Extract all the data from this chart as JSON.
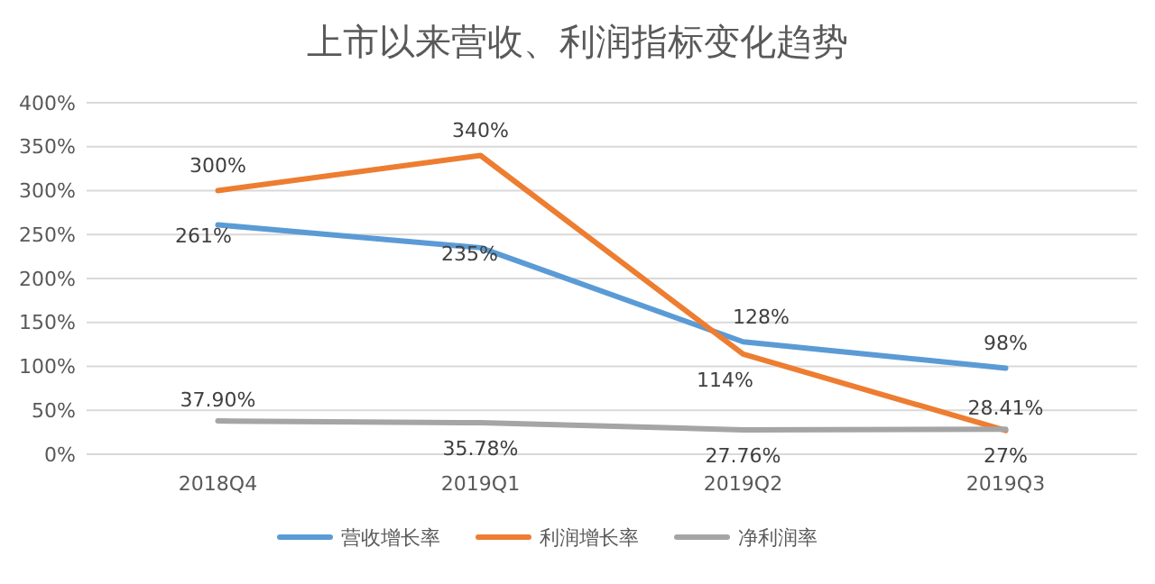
{
  "chart_data": {
    "type": "line",
    "title": "上市以来营收、利润指标变化趋势",
    "categories": [
      "2018Q4",
      "2019Q1",
      "2019Q2",
      "2019Q3"
    ],
    "series": [
      {
        "name": "营收增长率",
        "color": "#5b9bd5",
        "values": [
          261,
          235,
          128,
          98
        ],
        "value_labels": [
          "261%",
          "235%",
          "128%",
          "98%"
        ]
      },
      {
        "name": "利润增长率",
        "color": "#ed7d31",
        "values": [
          300,
          340,
          114,
          27
        ],
        "value_labels": [
          "300%",
          "340%",
          "114%",
          "27%"
        ]
      },
      {
        "name": "净利润率",
        "color": "#a5a5a5",
        "values": [
          37.9,
          35.78,
          27.76,
          28.41
        ],
        "value_labels": [
          "37.90%",
          "35.78%",
          "27.76%",
          "28.41%"
        ]
      }
    ],
    "ylim": [
      0,
      400
    ],
    "yticks": [
      {
        "value": 0,
        "label": "0%"
      },
      {
        "value": 50,
        "label": "50%"
      },
      {
        "value": 100,
        "label": "100%"
      },
      {
        "value": 150,
        "label": "150%"
      },
      {
        "value": 200,
        "label": "200%"
      },
      {
        "value": 250,
        "label": "250%"
      },
      {
        "value": 300,
        "label": "300%"
      },
      {
        "value": 350,
        "label": "350%"
      },
      {
        "value": 400,
        "label": "400%"
      }
    ],
    "grid": "y",
    "legend": "bottom",
    "marker": "none",
    "line_style": "solid"
  }
}
